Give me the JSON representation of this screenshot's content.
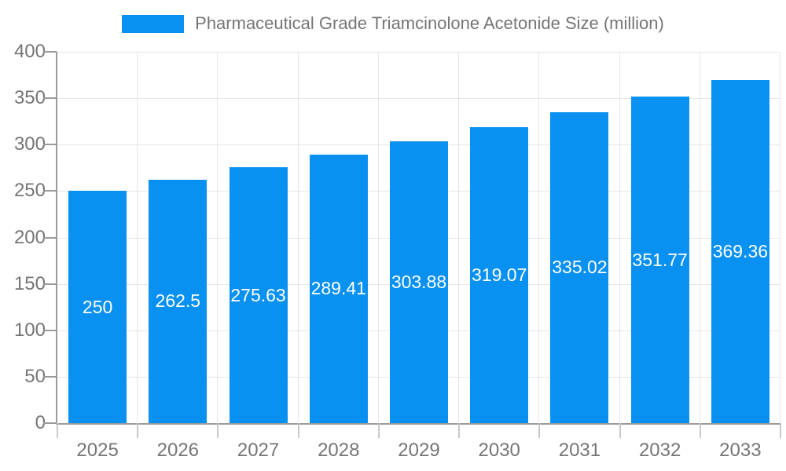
{
  "chart_data": {
    "type": "bar",
    "title": "Pharmaceutical Grade Triamcinolone Acetonide Size (million)",
    "categories": [
      "2025",
      "2026",
      "2027",
      "2028",
      "2029",
      "2030",
      "2031",
      "2032",
      "2033"
    ],
    "values": [
      250,
      262.5,
      275.63,
      289.41,
      303.88,
      319.07,
      335.02,
      351.77,
      369.36
    ],
    "value_labels": [
      "250",
      "262.5",
      "275.63",
      "289.41",
      "303.88",
      "319.07",
      "335.02",
      "351.77",
      "369.36"
    ],
    "ytick_labels": [
      "0",
      "50",
      "100",
      "150",
      "200",
      "250",
      "300",
      "350",
      "400"
    ],
    "ylim": [
      0,
      400
    ],
    "ytick_step": 50,
    "xlabel": "",
    "ylabel": "",
    "grid": true,
    "legend_position": "top",
    "bar_color": "#0991f2",
    "value_label_color": "#ffffff",
    "axis_text_color": "#757575",
    "axis_line_color": "#9a9a9a",
    "gridline_color": "#e6e6e6"
  }
}
